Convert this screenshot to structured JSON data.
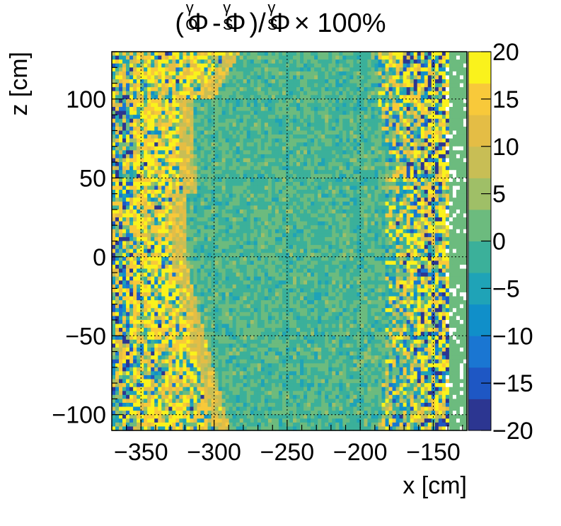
{
  "chart_data": {
    "type": "heatmap",
    "title": "(Φ_O^γ-Φ_S^γ)/Φ_S^γ× 100%",
    "title_parts": {
      "open": "(",
      "phi": "Φ",
      "gamma": "γ",
      "sub_o": "O",
      "sub_s": "S",
      "minus": "-",
      "rest": ")/",
      "times": "× 100%"
    },
    "xlabel": "x [cm]",
    "ylabel": "z [cm]",
    "xlim": [
      -370,
      -127
    ],
    "ylim": [
      -110,
      130
    ],
    "xticks": [
      -350,
      -300,
      -250,
      -200,
      -150
    ],
    "xtick_labels": [
      "−350",
      "−300",
      "−250",
      "−200",
      "−150"
    ],
    "yticks": [
      -100,
      -50,
      0,
      50,
      100
    ],
    "ytick_labels": [
      "−100",
      "−50",
      "0",
      "50",
      "100"
    ],
    "colorbar": {
      "range": [
        -20,
        20
      ],
      "ticks": [
        -20,
        -15,
        -10,
        -5,
        0,
        5,
        10,
        15,
        20
      ],
      "tick_labels": [
        "−20",
        "−15",
        "−10",
        "−5",
        "0",
        "5",
        "10",
        "15",
        "20"
      ]
    },
    "grid": true,
    "colormap": [
      "#2c3691",
      "#1e57c4",
      "#1a76d2",
      "#108fc9",
      "#1fa3b7",
      "#3bb09a",
      "#6cbb7e",
      "#9fbf67",
      "#c8be55",
      "#e4bd45",
      "#f8c93a",
      "#faf21c"
    ]
  }
}
